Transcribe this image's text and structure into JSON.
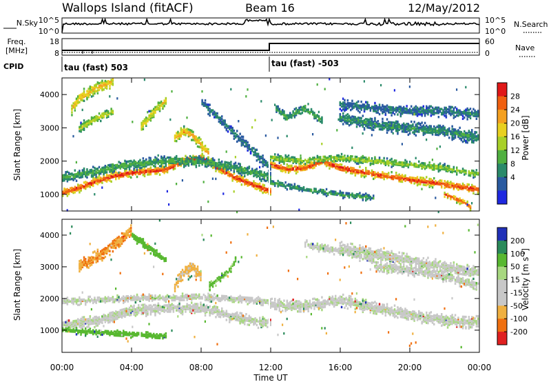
{
  "header": {
    "station": "Wallops Island (fitACF)",
    "beam": "Beam 16",
    "date": "12/May/2012"
  },
  "top_panels": {
    "nsky_label": "N.Sky",
    "nsky_ticks": [
      "10^5",
      "10^0"
    ],
    "nsearch_label": "N.Search",
    "nsearch_ticks": [
      "10^5",
      "10^0"
    ],
    "freq_label_1": "Freq.",
    "freq_label_2": "[MHz]",
    "freq_ticks": [
      "18",
      "8"
    ],
    "nave_label": "Nave",
    "nave_ticks": [
      "60",
      "0"
    ],
    "cpid_label": "CPID",
    "cpid_segments": [
      {
        "text": "tau (fast) 503",
        "start_hour": 0
      },
      {
        "text": "tau (fast) -503",
        "start_hour": 12
      }
    ]
  },
  "chart_data": [
    {
      "type": "heatmap",
      "quantity": "Power",
      "ylabel": "Slant Range [km]",
      "xlabel": "Time UT",
      "xlim": [
        0,
        24
      ],
      "ylim": [
        500,
        4500
      ],
      "x_ticks": [
        "00:00",
        "04:00",
        "08:00",
        "12:00",
        "16:00",
        "20:00",
        "00:00"
      ],
      "y_ticks": [
        1000,
        2000,
        3000,
        4000
      ],
      "colorbar": {
        "label": "Power [dB]",
        "ticks": [
          "28",
          "24",
          "20",
          "16",
          "12",
          "8",
          "4"
        ],
        "colors": [
          "#e01818",
          "#f06010",
          "#f4a020",
          "#e8d020",
          "#a8d028",
          "#50b040",
          "#2a8a6a",
          "#2a5aa0",
          "#1e28e0"
        ]
      },
      "bands": [
        {
          "points": [
            [
              0,
              1050
            ],
            [
              1,
              1200
            ],
            [
              2,
              1400
            ],
            [
              3,
              1550
            ],
            [
              4,
              1650
            ],
            [
              5,
              1700
            ],
            [
              6,
              1750
            ],
            [
              7,
              2000
            ],
            [
              8,
              2100
            ],
            [
              9,
              1800
            ],
            [
              10,
              1500
            ],
            [
              11,
              1300
            ],
            [
              12,
              1100
            ]
          ],
          "level": 28,
          "width": 200
        },
        {
          "points": [
            [
              0,
              1500
            ],
            [
              2,
              1700
            ],
            [
              4,
              1900
            ],
            [
              6,
              2000
            ],
            [
              8,
              2000
            ],
            [
              10,
              1800
            ],
            [
              12,
              1500
            ]
          ],
          "level": 10,
          "width": 250
        },
        {
          "points": [
            [
              6.5,
              2700
            ],
            [
              7,
              2900
            ],
            [
              7.5,
              2800
            ],
            [
              8,
              2500
            ],
            [
              8.5,
              2200
            ]
          ],
          "level": 22,
          "width": 250
        },
        {
          "points": [
            [
              12,
              1900
            ],
            [
              13,
              1750
            ],
            [
              14,
              1800
            ],
            [
              15,
              2000
            ],
            [
              16,
              1800
            ],
            [
              18,
              1600
            ],
            [
              20,
              1450
            ],
            [
              22,
              1300
            ],
            [
              24,
              1150
            ]
          ],
          "level": 28,
          "width": 200
        },
        {
          "points": [
            [
              12,
              2100
            ],
            [
              14,
              2000
            ],
            [
              16,
              2100
            ],
            [
              18,
              2000
            ],
            [
              20,
              1900
            ],
            [
              22,
              1800
            ],
            [
              24,
              1600
            ]
          ],
          "level": 14,
          "width": 180
        },
        {
          "points": [
            [
              12,
              1350
            ],
            [
              14,
              1150
            ],
            [
              16,
              1000
            ],
            [
              18,
              900
            ]
          ],
          "level": 9,
          "width": 150
        },
        {
          "points": [
            [
              0.5,
              3500
            ],
            [
              1,
              3900
            ],
            [
              2,
              4200
            ],
            [
              3,
              4400
            ]
          ],
          "level": 20,
          "width": 300
        },
        {
          "points": [
            [
              4.5,
              3000
            ],
            [
              5,
              3300
            ],
            [
              5.5,
              3600
            ],
            [
              6,
              3800
            ]
          ],
          "level": 18,
          "width": 260
        },
        {
          "points": [
            [
              1,
              3000
            ],
            [
              2,
              3300
            ],
            [
              3,
              3500
            ]
          ],
          "level": 16,
          "width": 200
        },
        {
          "points": [
            [
              8,
              3800
            ],
            [
              9,
              3300
            ],
            [
              10,
              2800
            ],
            [
              11,
              2300
            ],
            [
              12,
              1800
            ]
          ],
          "level": 6,
          "width": 250
        },
        {
          "points": [
            [
              12.3,
              3600
            ],
            [
              13,
              3300
            ],
            [
              14,
              3600
            ],
            [
              15,
              3200
            ]
          ],
          "level": 10,
          "width": 200
        },
        {
          "points": [
            [
              16,
              3300
            ],
            [
              18,
              3100
            ],
            [
              20,
              3000
            ],
            [
              22,
              2900
            ],
            [
              24,
              2700
            ]
          ],
          "level": 8,
          "width": 300
        },
        {
          "points": [
            [
              16,
              3700
            ],
            [
              18,
              3600
            ],
            [
              20,
              3500
            ],
            [
              22,
              3500
            ],
            [
              24,
              3400
            ]
          ],
          "level": 6,
          "width": 250
        },
        {
          "points": [
            [
              22,
              1000
            ],
            [
              23,
              800
            ],
            [
              23.6,
              600
            ]
          ],
          "level": 26,
          "width": 150
        }
      ]
    },
    {
      "type": "heatmap",
      "quantity": "Velocity",
      "ylabel": "Slant Range [km]",
      "xlabel": "Time UT",
      "xlim": [
        0,
        24
      ],
      "ylim": [
        300,
        4500
      ],
      "x_ticks": [
        "00:00",
        "04:00",
        "08:00",
        "12:00",
        "16:00",
        "20:00",
        "00:00"
      ],
      "y_ticks": [
        1000,
        2000,
        3000,
        4000
      ],
      "colorbar": {
        "label": "Velocity [m s^-1]",
        "ticks": [
          "200",
          "100",
          "50",
          "15",
          "-15",
          "-50",
          "-100",
          "-200"
        ],
        "colors": [
          "#2030b8",
          "#2a8a5a",
          "#58b830",
          "#a8d880",
          "#c8c8c8",
          "#c8c8c8",
          "#f0b040",
          "#f07010",
          "#e02020"
        ]
      },
      "bands": [
        {
          "points": [
            [
              0,
              1150
            ],
            [
              2,
              1300
            ],
            [
              4,
              1600
            ],
            [
              6,
              1700
            ],
            [
              8,
              1700
            ],
            [
              10,
              1400
            ],
            [
              12,
              1200
            ]
          ],
          "level": 0,
          "width": 280
        },
        {
          "points": [
            [
              12,
              1800
            ],
            [
              14,
              1750
            ],
            [
              16,
              1950
            ],
            [
              18,
              1700
            ],
            [
              20,
              1500
            ],
            [
              22,
              1300
            ],
            [
              24,
              1250
            ]
          ],
          "level": 0,
          "width": 300
        },
        {
          "points": [
            [
              0,
              1900
            ],
            [
              4,
              2000
            ],
            [
              8,
              2050
            ],
            [
              12,
              1900
            ]
          ],
          "level": 0,
          "width": 180
        },
        {
          "points": [
            [
              6.5,
              2400
            ],
            [
              7,
              2800
            ],
            [
              7.5,
              3000
            ],
            [
              8,
              2700
            ]
          ],
          "level": -40,
          "width": 300
        },
        {
          "points": [
            [
              1,
              3000
            ],
            [
              2,
              3300
            ],
            [
              3,
              3700
            ],
            [
              4,
              4100
            ]
          ],
          "level": -70,
          "width": 320
        },
        {
          "points": [
            [
              8.5,
              2400
            ],
            [
              9.5,
              2800
            ],
            [
              10,
              3200
            ]
          ],
          "level": 40,
          "width": 200
        },
        {
          "points": [
            [
              4,
              4000
            ],
            [
              5,
              3600
            ],
            [
              6,
              3200
            ]
          ],
          "level": 60,
          "width": 200
        },
        {
          "points": [
            [
              16,
              3600
            ],
            [
              18,
              3400
            ],
            [
              20,
              3200
            ],
            [
              22,
              3000
            ],
            [
              24,
              2800
            ]
          ],
          "level": 0,
          "width": 300
        },
        {
          "points": [
            [
              18,
              3000
            ],
            [
              20,
              2900
            ],
            [
              22,
              2700
            ],
            [
              24,
              2400
            ]
          ],
          "level": 0,
          "width": 250
        },
        {
          "points": [
            [
              14,
              3700
            ],
            [
              16,
              3500
            ],
            [
              18,
              3200
            ]
          ],
          "level": 0,
          "width": 200
        },
        {
          "points": [
            [
              0,
              1000
            ],
            [
              3,
              900
            ],
            [
              6,
              800
            ]
          ],
          "level": 60,
          "width": 150
        }
      ]
    }
  ]
}
